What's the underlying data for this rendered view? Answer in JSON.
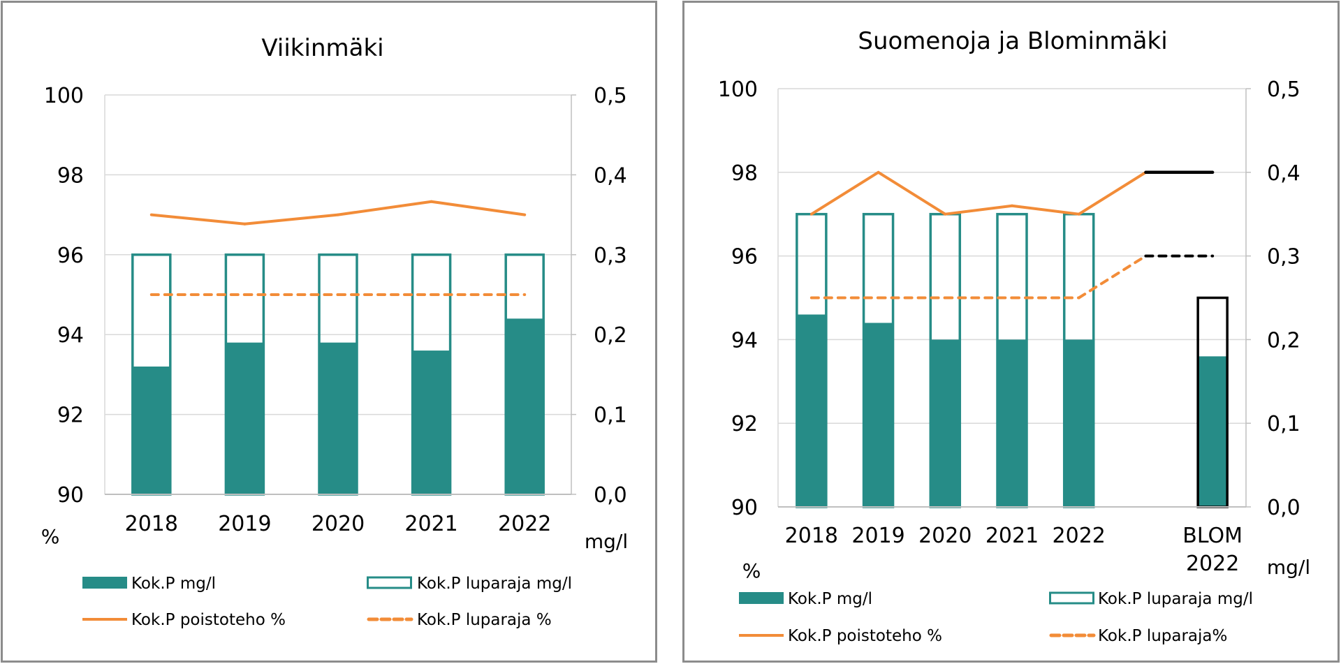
{
  "colors": {
    "teal": "#268c87",
    "orange": "#f28c38",
    "black": "#000000",
    "grid": "#d9d9d9",
    "axis": "#bfbfbf"
  },
  "chart_data": [
    {
      "type": "bar",
      "title": "Viikinmäki",
      "categories": [
        "2018",
        "2019",
        "2020",
        "2021",
        "2022"
      ],
      "left_axis": {
        "unit_label": "%",
        "ylim": [
          90,
          100
        ],
        "ticks": [
          "90",
          "92",
          "94",
          "96",
          "98",
          "100"
        ]
      },
      "right_axis": {
        "unit_label": "mg/l",
        "ylim": [
          0,
          0.5
        ],
        "ticks": [
          "0,0",
          "0,1",
          "0,2",
          "0,3",
          "0,4",
          "0,5"
        ]
      },
      "grid": true,
      "series": [
        {
          "name": "Kok.P  mg/l",
          "kind": "bar-filled",
          "axis": "right",
          "values": [
            0.16,
            0.19,
            0.19,
            0.18,
            0.22
          ]
        },
        {
          "name": "Kok.P luparaja  mg/l",
          "kind": "bar-outline",
          "axis": "right",
          "values": [
            0.3,
            0.3,
            0.3,
            0.3,
            0.3
          ]
        },
        {
          "name": "Kok.P poistoteho %",
          "kind": "line",
          "axis": "left",
          "values": [
            97.0,
            96.77,
            97.0,
            97.33,
            97.0
          ]
        },
        {
          "name": "Kok.P luparaja  %",
          "kind": "line-dashed",
          "axis": "left",
          "values": [
            95,
            95,
            95,
            95,
            95
          ]
        }
      ],
      "legend": [
        {
          "label": "Kok.P  mg/l",
          "swatch": "filled"
        },
        {
          "label": "Kok.P luparaja  mg/l",
          "swatch": "outline"
        },
        {
          "label": "Kok.P poistoteho %",
          "swatch": "line"
        },
        {
          "label": "Kok.P luparaja  %",
          "swatch": "dashed"
        }
      ],
      "legend_position": "bottom"
    },
    {
      "type": "bar",
      "title": "Suomenoja ja Blominmäki",
      "categories": [
        "2018",
        "2019",
        "2020",
        "2021",
        "2022",
        "",
        "BLOM\n2022"
      ],
      "category_lines": [
        [
          "2018"
        ],
        [
          "2019"
        ],
        [
          "2020"
        ],
        [
          "2021"
        ],
        [
          "2022"
        ],
        [
          ""
        ],
        [
          "BLOM",
          "2022"
        ]
      ],
      "left_axis": {
        "unit_label": "%",
        "ylim": [
          90,
          100
        ],
        "ticks": [
          "90",
          "92",
          "94",
          "96",
          "98",
          "100"
        ]
      },
      "right_axis": {
        "unit_label": "mg/l",
        "ylim": [
          0,
          0.5
        ],
        "ticks": [
          "0,0",
          "0,1",
          "0,2",
          "0,3",
          "0,4",
          "0,5"
        ]
      },
      "grid": true,
      "series": [
        {
          "name": "Kok.P mg/l",
          "kind": "bar-filled",
          "axis": "right",
          "values": [
            0.23,
            0.22,
            0.2,
            0.2,
            0.2,
            null,
            0.18
          ]
        },
        {
          "name": "Kok.P luparaja mg/l",
          "kind": "bar-outline",
          "axis": "right",
          "values": [
            0.35,
            0.35,
            0.35,
            0.35,
            0.35,
            null,
            0.25
          ],
          "outline_colors": [
            "teal",
            "teal",
            "teal",
            "teal",
            "teal",
            null,
            "black"
          ]
        },
        {
          "name": "Kok.P poistoteho %",
          "kind": "line",
          "axis": "left",
          "values": [
            97.0,
            98.0,
            97.0,
            97.2,
            97.0,
            98.0,
            98.0
          ],
          "segment_colors": [
            "orange",
            "orange",
            "orange",
            "orange",
            "orange",
            "black"
          ]
        },
        {
          "name": "Kok.P luparaja%",
          "kind": "line-dashed",
          "axis": "left",
          "values": [
            95,
            95,
            95,
            95,
            95,
            96,
            96
          ],
          "segment_colors": [
            "orange",
            "orange",
            "orange",
            "orange",
            "orange",
            "black"
          ]
        }
      ],
      "legend": [
        {
          "label": "Kok.P mg/l",
          "swatch": "filled"
        },
        {
          "label": "Kok.P luparaja mg/l",
          "swatch": "outline"
        },
        {
          "label": "Kok.P poistoteho %",
          "swatch": "line"
        },
        {
          "label": "Kok.P luparaja%",
          "swatch": "dashed"
        }
      ],
      "legend_position": "bottom"
    }
  ]
}
